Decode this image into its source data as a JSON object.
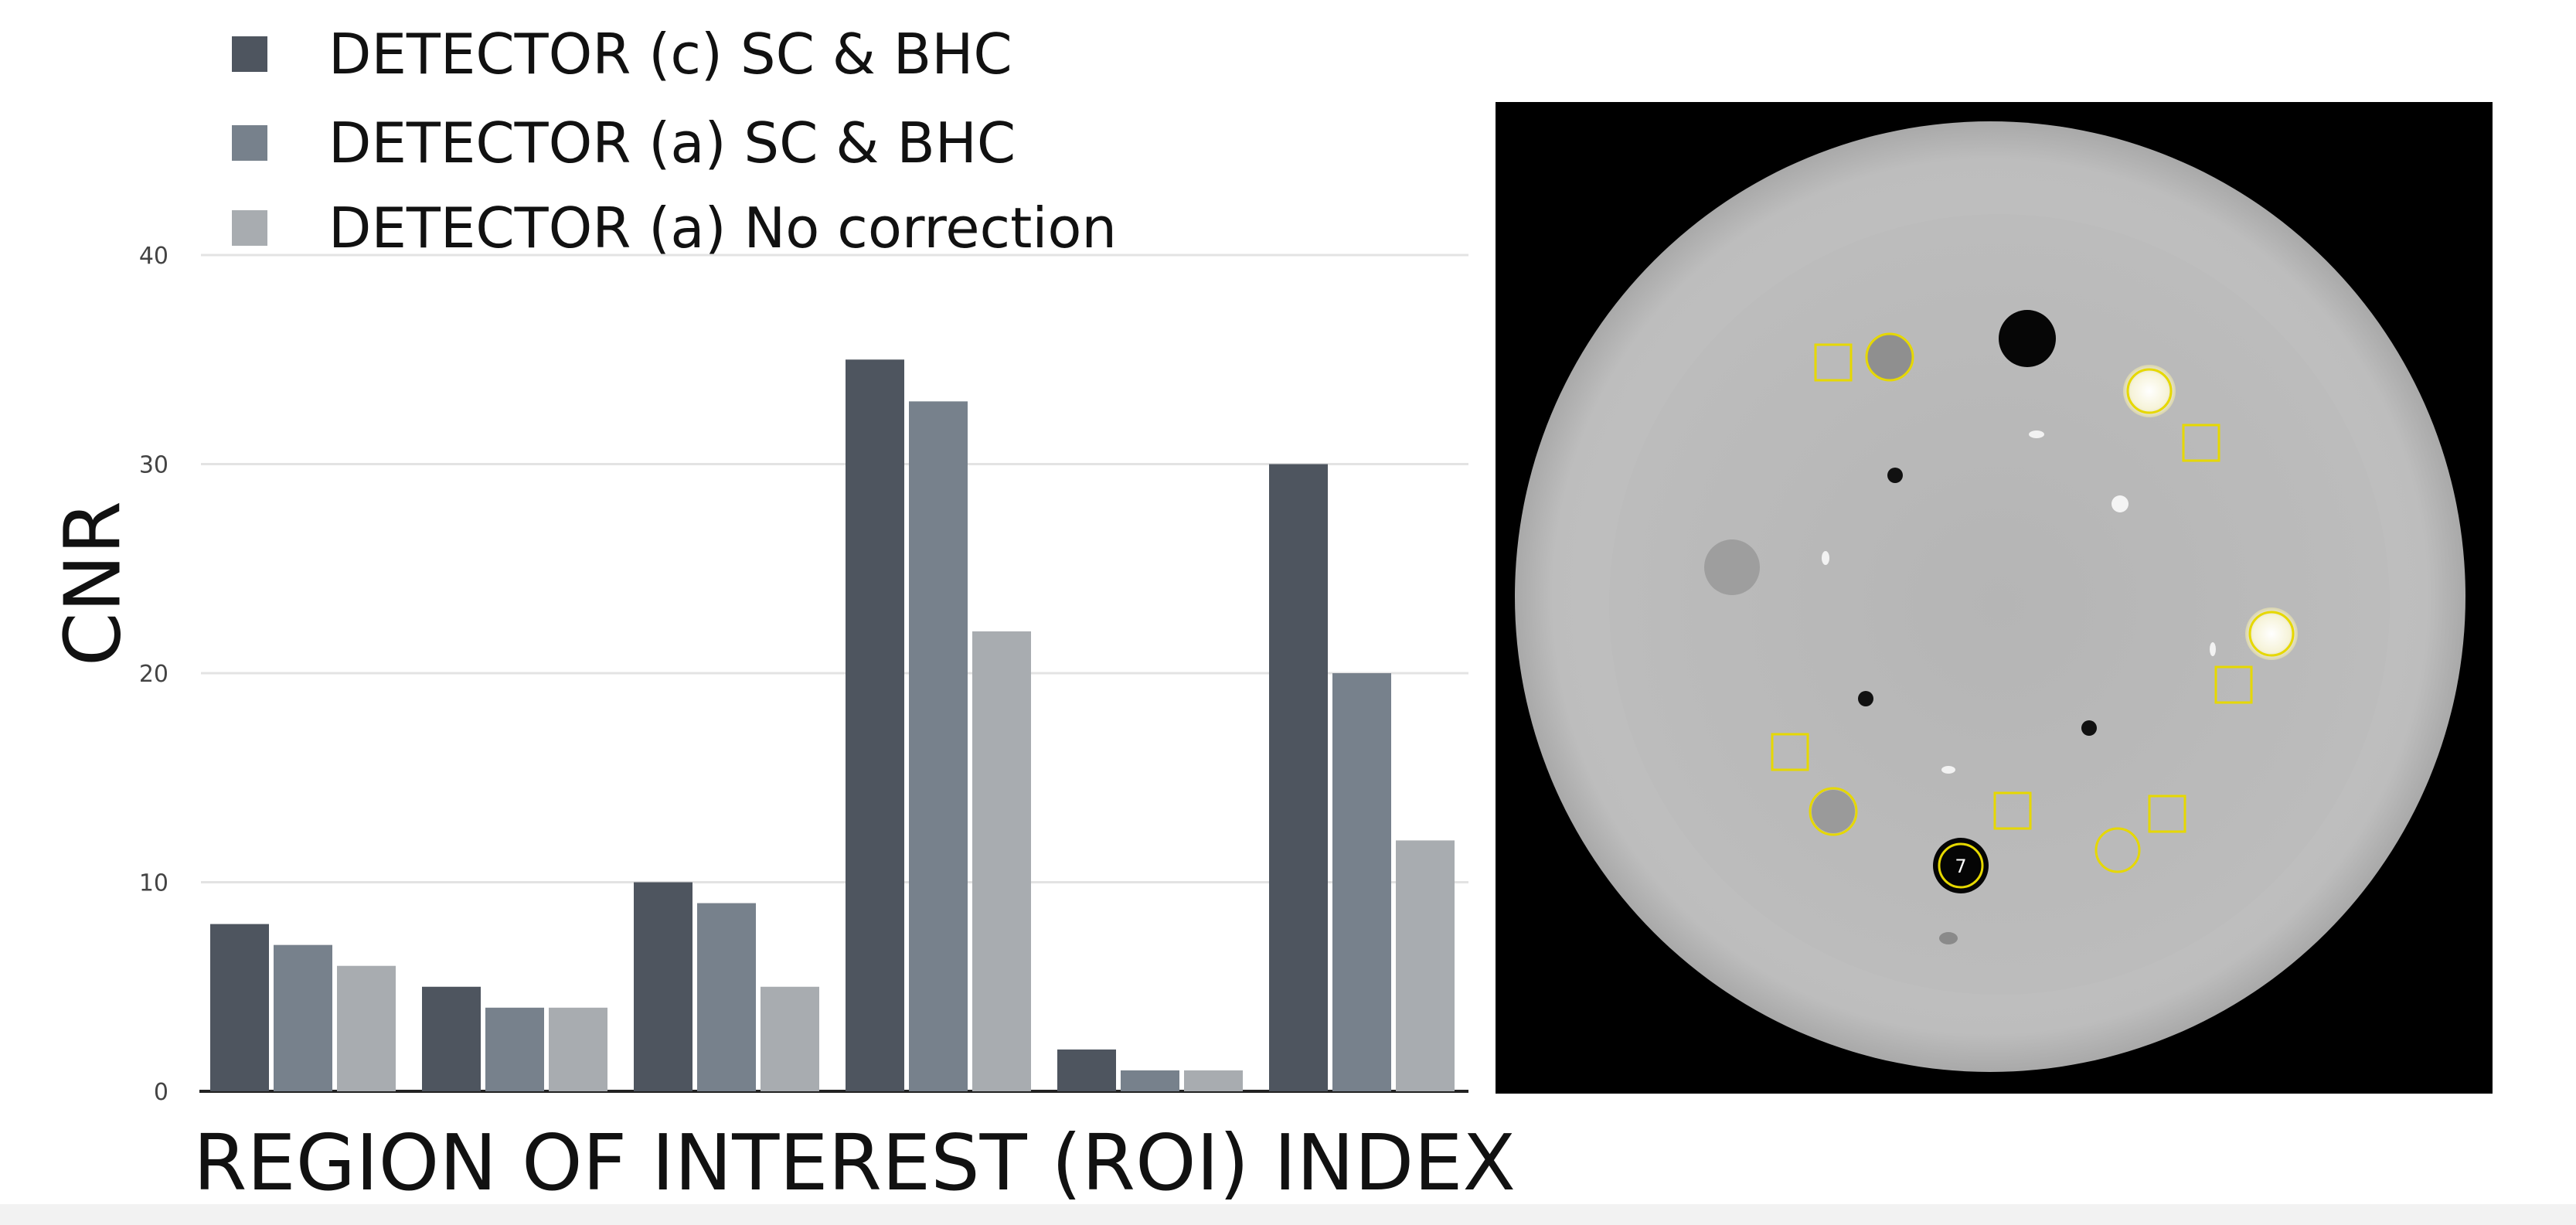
{
  "chart_data": {
    "type": "bar",
    "xlabel": "REGION OF INTEREST (ROI) INDEX",
    "ylabel": "CNR",
    "ylim": [
      0,
      40
    ],
    "yticks": [
      0,
      10,
      20,
      30,
      40
    ],
    "grid": true,
    "legend_position": "top-left",
    "categories": [
      "",
      "",
      "",
      "",
      "",
      ""
    ],
    "series": [
      {
        "name": "DETECTOR (c) SC & BHC",
        "color": "#4e555f",
        "values": [
          8,
          5,
          10,
          35,
          2,
          30
        ]
      },
      {
        "name": "DETECTOR (a) SC & BHC",
        "color": "#77818c",
        "values": [
          7,
          4,
          9,
          33,
          1,
          20
        ]
      },
      {
        "name": "DETECTOR (a) No correction",
        "color": "#a8acb0",
        "values": [
          6,
          4,
          5,
          22,
          1,
          12
        ]
      }
    ]
  },
  "scan_image": {
    "roi_labels": [
      "7"
    ],
    "colors": {
      "background": "#000000",
      "outer_ring": "#c3c3c3",
      "inner_disc": "#bbbbbb",
      "roi_marker": "#e6d800"
    }
  }
}
